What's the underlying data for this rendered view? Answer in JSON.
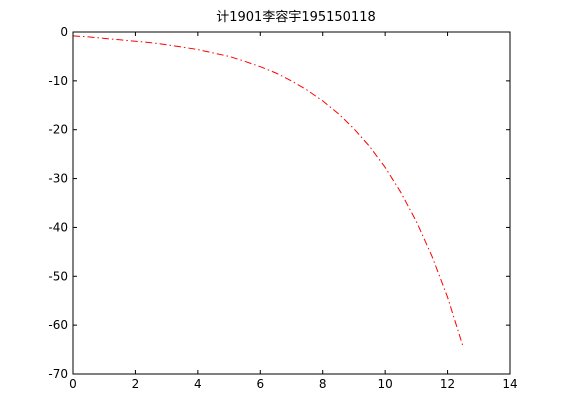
{
  "chart_data": {
    "type": "line",
    "title": "计1901李容宇195150118",
    "xlabel": "",
    "ylabel": "",
    "xlim": [
      0,
      14
    ],
    "ylim": [
      -70,
      0
    ],
    "xticks": [
      0,
      2,
      4,
      6,
      8,
      10,
      12,
      14
    ],
    "yticks": [
      0,
      -10,
      -20,
      -30,
      -40,
      -50,
      -60,
      -70
    ],
    "xtick_labels": [
      "0",
      "2",
      "4",
      "6",
      "8",
      "10",
      "12",
      "14"
    ],
    "ytick_labels": [
      "0",
      "-10",
      "-20",
      "-30",
      "-40",
      "-50",
      "-60",
      "-70"
    ],
    "grid": false,
    "series": [
      {
        "line_style": "dash-dot",
        "color": "#ff0000",
        "x": [
          0,
          0.5,
          1,
          1.5,
          2,
          2.5,
          3,
          3.5,
          4,
          4.5,
          5,
          5.5,
          6,
          6.5,
          7,
          7.5,
          8,
          8.5,
          9,
          9.5,
          10,
          10.5,
          11,
          11.5,
          12,
          12.5
        ],
        "y": [
          -0.8,
          -1.0,
          -1.3,
          -1.6,
          -1.9,
          -2.2,
          -2.6,
          -3.1,
          -3.6,
          -4.3,
          -5.0,
          -6.0,
          -7.1,
          -8.4,
          -10.0,
          -11.9,
          -14.1,
          -16.7,
          -19.8,
          -23.4,
          -27.7,
          -32.8,
          -38.8,
          -45.9,
          -54.3,
          -64.5
        ]
      }
    ]
  }
}
